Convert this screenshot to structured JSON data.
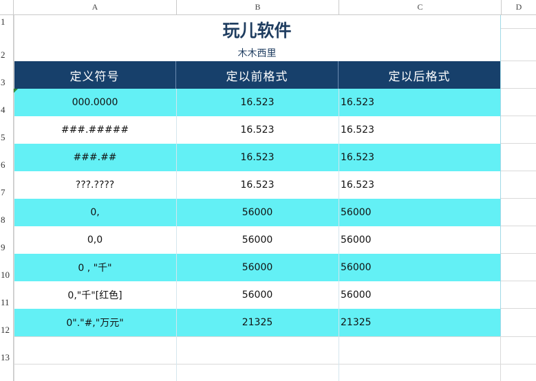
{
  "columns": [
    "A",
    "B",
    "C",
    "D"
  ],
  "row_numbers": [
    "1",
    "2",
    "3",
    "4",
    "5",
    "6",
    "7",
    "8",
    "9",
    "10",
    "11",
    "12",
    "13"
  ],
  "title": "玩儿软件",
  "subtitle": "木木西里",
  "headers": [
    "定义符号",
    "定以前格式",
    "定以后格式"
  ],
  "rows": [
    {
      "symbol": "000.0000",
      "before": "16.523",
      "after": "16.523"
    },
    {
      "symbol": "###.#####",
      "before": "16.523",
      "after": "16.523"
    },
    {
      "symbol": "###.##",
      "before": "16.523",
      "after": "16.523"
    },
    {
      "symbol": "???.????",
      "before": "16.523",
      "after": "16.523"
    },
    {
      "symbol": "0,",
      "before": "56000",
      "after": "56000"
    },
    {
      "symbol": "0,0",
      "before": "56000",
      "after": "56000"
    },
    {
      "symbol": "0 , \"千\"",
      "before": "56000",
      "after": "56000"
    },
    {
      "symbol": "0,\"千\"[红色]",
      "before": "56000",
      "after": "56000"
    },
    {
      "symbol": "0\".\"#,\"万元\"",
      "before": "21325",
      "after": "21325"
    }
  ],
  "colors": {
    "header_fill": "#17406b",
    "band_fill": "#63f0f5",
    "title_color": "#1f3d60"
  }
}
